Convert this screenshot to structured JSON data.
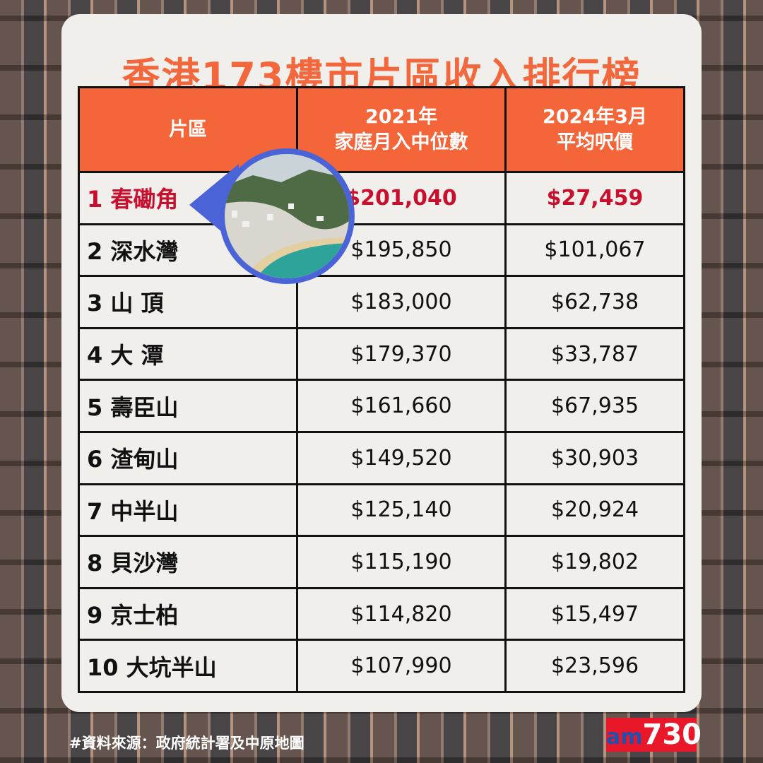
{
  "title": "香港173樓市片區收入排行榜",
  "table": {
    "headers": [
      "片區",
      "2021年\n家庭月入中位數",
      "2024年3月\n平均呎價"
    ],
    "rows": [
      {
        "name": "1 春磡角",
        "income": "$201,040",
        "price": "$27,459"
      },
      {
        "name": "2 深水灣",
        "income": "$195,850",
        "price": "$101,067"
      },
      {
        "name": "3 山 頂",
        "income": "$183,000",
        "price": "$62,738"
      },
      {
        "name": "4 大 潭",
        "income": "$179,370",
        "price": "$33,787"
      },
      {
        "name": "5 壽臣山",
        "income": "$161,660",
        "price": "$67,935"
      },
      {
        "name": "6 渣甸山",
        "income": "$149,520",
        "price": "$30,903"
      },
      {
        "name": "7 中半山",
        "income": "$125,140",
        "price": "$20,924"
      },
      {
        "name": "8 貝沙灣",
        "income": "$115,190",
        "price": "$19,802"
      },
      {
        "name": "9 京士柏",
        "income": "$114,820",
        "price": "$15,497"
      },
      {
        "name": "10 大坑半山",
        "income": "$107,990",
        "price": "$23,596"
      }
    ]
  },
  "footer": "#資料來源：政府統計署及中原地圖",
  "logo": {
    "am": "am",
    "num": "730"
  },
  "colors": {
    "accent": "#f4653a",
    "highlight": "#c8102e",
    "callout": "#4a63d6"
  }
}
